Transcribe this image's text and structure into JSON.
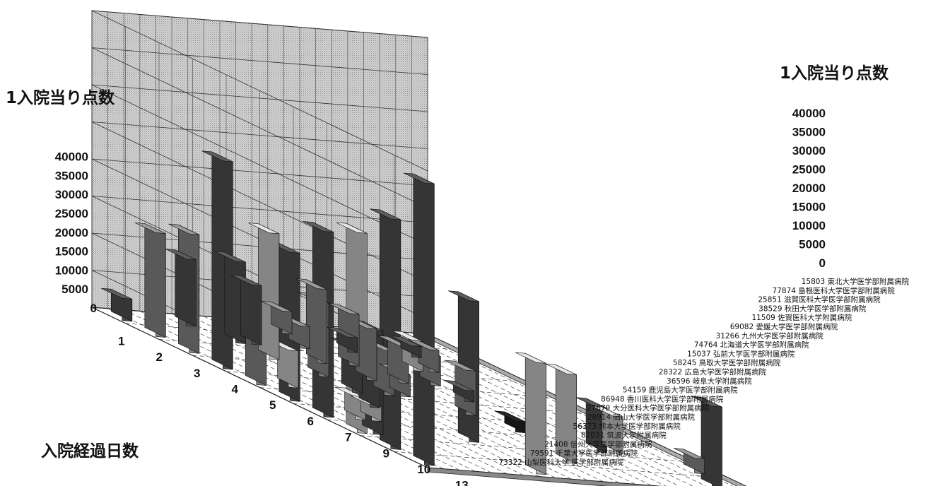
{
  "chart_data": {
    "type": "bar3d",
    "z_axis_label_left": "1入院当り点数",
    "z_axis_label_right": "1入院当り点数",
    "x_axis_label": "入院経過日数",
    "z_ticks": [
      "0",
      "5000",
      "10000",
      "15000",
      "20000",
      "25000",
      "30000",
      "35000",
      "40000"
    ],
    "zlim": [
      0,
      40000
    ],
    "days": [
      "1",
      "2",
      "3",
      "4",
      "5",
      "6",
      "7",
      "9",
      "10",
      "13"
    ],
    "hospitals": [
      "15803 東北大学医学部附属病院",
      "77874 島根医科大学医学部附属病院",
      "25851 滋賀医科大学医学部附属病院",
      "38529 秋田大学医学部附属病院",
      "11509 佐賀医科大学附属病院",
      "69082 愛媛大学医学部附属病院",
      "31266 九州大学医学部附属病院",
      "74764 北海道大学医学部附属病院",
      "15037 弘前大学医学部附属病院",
      "58245 鳥取大学医学部附属病院",
      "28322 広島大学医学部附属病院",
      "36596 岐阜大学附属病院",
      "54159 鹿児島大学医学部附属病院",
      "86948 香川医科大学医学部附属病院",
      "27679 大分医科大学医学部附属病院",
      "28914 岡山大学医学部附属病院",
      "56373 熊本大学医学部附属病院",
      "82031 筑波大学附属病院",
      "21408 信州大学医学部附属病院",
      "79591 千葉大学医学部附属病院",
      "73322 山梨医科大学 医学部附属病院"
    ],
    "bars": [
      {
        "day": "13",
        "hospital": "15803 東北大学医学部附属病院",
        "value": 38000,
        "shade": "dark"
      },
      {
        "day": "13",
        "hospital": "74764 北海道大学医学部附属病院",
        "value": 15000,
        "shade": "light"
      },
      {
        "day": "13",
        "hospital": "21408 信州大学医学部附属病院",
        "value": 11000,
        "shade": "dark"
      },
      {
        "day": "10",
        "hospital": "15803 東北大学医学部附属病院",
        "value": 31000,
        "shade": "dark"
      },
      {
        "day": "10",
        "hospital": "36596 岐阜大学附属病院",
        "value": 12000,
        "shade": "light"
      },
      {
        "day": "10",
        "hospital": "79591 千葉大学医学部附属病院",
        "value": 2000,
        "shade": "mid"
      },
      {
        "day": "9",
        "hospital": "15803 東北大学医学部附属病院",
        "value": 27000,
        "shade": "light"
      },
      {
        "day": "9",
        "hospital": "77874 島根医科大学医学部附属病院",
        "value": 14000,
        "shade": "dark"
      },
      {
        "day": "9",
        "hospital": "74764 北海道大学医学部附属病院",
        "value": 19000,
        "shade": "dark"
      },
      {
        "day": "9",
        "hospital": "28914 岡山大学医学部附属病院",
        "value": 6000,
        "shade": "dark"
      },
      {
        "day": "9",
        "hospital": "56373 熊本大学医学部附属病院",
        "value": 5000,
        "shade": "light"
      },
      {
        "day": "7",
        "hospital": "15803 東北大学医学部附属病院",
        "value": 25000,
        "shade": "dark"
      },
      {
        "day": "7",
        "hospital": "25851 滋賀医科大学医学部附属病院",
        "value": 3000,
        "shade": "light"
      },
      {
        "day": "7",
        "hospital": "38529 秋田大学医学部附属病院",
        "value": 2000,
        "shade": "light"
      },
      {
        "day": "7",
        "hospital": "54159 鹿児島大学医学部附属病院",
        "value": 1500,
        "shade": "black"
      },
      {
        "day": "6",
        "hospital": "15803 東北大学医学部附属病院",
        "value": 20000,
        "shade": "dark"
      },
      {
        "day": "6",
        "hospital": "69082 愛媛大学医学部附属病院",
        "value": 6000,
        "shade": "dark"
      },
      {
        "day": "6",
        "hospital": "36596 岐阜大学附属病院",
        "value": 6000,
        "shade": "mid"
      },
      {
        "day": "5",
        "hospital": "15803 東北大学医学部附属病院",
        "value": 7000,
        "shade": "mid"
      },
      {
        "day": "5",
        "hospital": "25851 滋賀医科大学医学部附属病院",
        "value": 5000,
        "shade": "light"
      },
      {
        "day": "5",
        "hospital": "31266 九州大学医学部附属病院",
        "value": 6000,
        "shade": "dark"
      },
      {
        "day": "5",
        "hospital": "15037 弘前大学医学部附属病院",
        "value": 6000,
        "shade": "mid"
      },
      {
        "day": "5",
        "hospital": "58245 鳥取大学医学部附属病院",
        "value": 3000,
        "shade": "mid"
      },
      {
        "day": "5",
        "hospital": "86948 香川医科大学医学部附属病院",
        "value": 1500,
        "shade": "dark"
      },
      {
        "day": "4",
        "hospital": "15803 東北大学医学部附属病院",
        "value": 28000,
        "shade": "dark"
      },
      {
        "day": "4",
        "hospital": "31266 九州大学医学部附属病院",
        "value": 10000,
        "shade": "mid"
      },
      {
        "day": "4",
        "hospital": "58245 鳥取大学医学部附属病院",
        "value": 7000,
        "shade": "mid"
      },
      {
        "day": "4",
        "hospital": "36596 岐阜大学附属病院",
        "value": 5000,
        "shade": "mid"
      },
      {
        "day": "4",
        "hospital": "86948 香川医科大学医学部附属病院",
        "value": 4000,
        "shade": "mid"
      },
      {
        "day": "3",
        "hospital": "15803 東北大学医学部附属病院",
        "value": 16000,
        "shade": "mid"
      },
      {
        "day": "3",
        "hospital": "69082 愛媛大学医学部附属病院",
        "value": 17000,
        "shade": "light"
      },
      {
        "day": "3",
        "hospital": "15037 弘前大学医学部附属病院",
        "value": 10000,
        "shade": "mid"
      },
      {
        "day": "3",
        "hospital": "28322 広島大学医学部附属病院",
        "value": 7000,
        "shade": "mid"
      },
      {
        "day": "3",
        "hospital": "27679 大分医科大学医学部附属病院",
        "value": 4000,
        "shade": "light"
      },
      {
        "day": "3",
        "hospital": "28914 岡山大学医学部附属病院",
        "value": 3000,
        "shade": "mid"
      },
      {
        "day": "2",
        "hospital": "15803 東北大学医学部附属病院",
        "value": 14000,
        "shade": "mid"
      },
      {
        "day": "2",
        "hospital": "69082 愛媛大学医学部附属病院",
        "value": 11000,
        "shade": "dark"
      },
      {
        "day": "2",
        "hospital": "31266 九州大学医学部附属病院",
        "value": 8000,
        "shade": "dark"
      },
      {
        "day": "2",
        "hospital": "58245 鳥取大学医学部附属病院",
        "value": 3000,
        "shade": "mid"
      },
      {
        "day": "2",
        "hospital": "54159 鹿児島大学医学部附属病院",
        "value": 2000,
        "shade": "dark"
      },
      {
        "day": "2",
        "hospital": "56373 熊本大学医学部附属病院",
        "value": 1500,
        "shade": "dark"
      },
      {
        "day": "1",
        "hospital": "15803 東北大学医学部附属病院",
        "value": 3000,
        "shade": "dark"
      },
      {
        "day": "1",
        "hospital": "11509 佐賀医科大学附属病院",
        "value": 9000,
        "shade": "dark"
      },
      {
        "day": "1",
        "hospital": "28322 広島大学医学部附属病院",
        "value": 3000,
        "shade": "mid"
      }
    ],
    "grid": true,
    "colors": {
      "black": "#1e1e1e",
      "dark": "#4a4a4a",
      "mid": "#7c7c7c",
      "light": "#b9b9b9"
    }
  }
}
